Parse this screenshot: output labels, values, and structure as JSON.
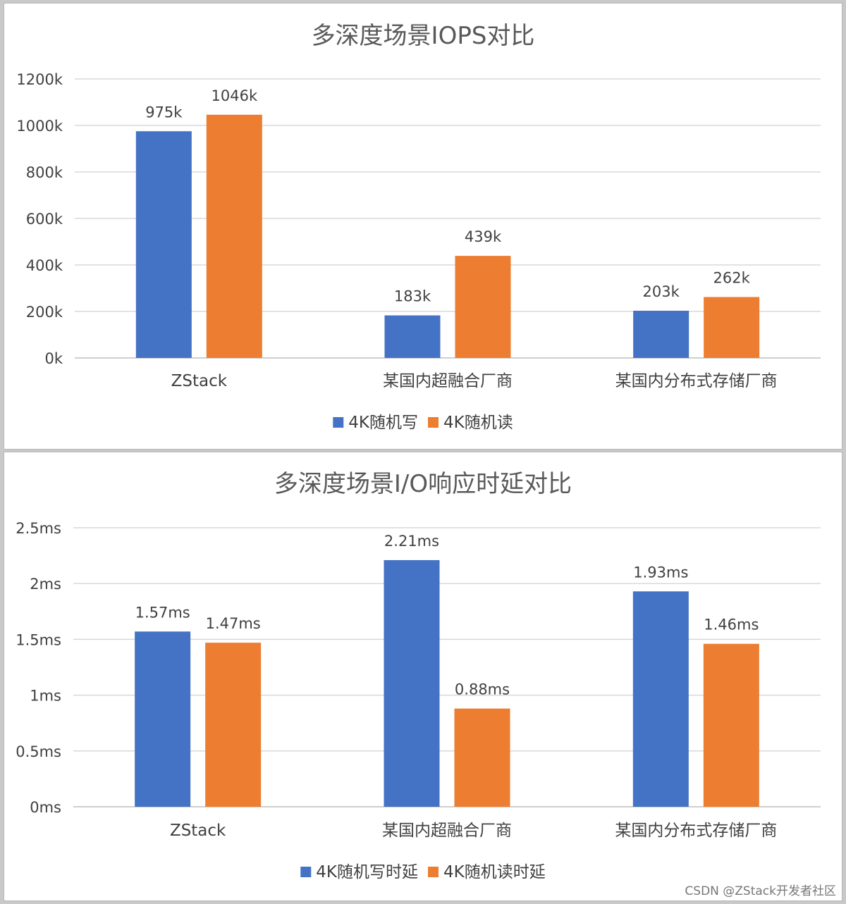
{
  "colors": {
    "series1": "#4472C4",
    "series2": "#ED7D31",
    "grid": "#D9D9D9",
    "text": "#404040",
    "title": "#595959"
  },
  "watermark": "CSDN @ZStack开发者社区",
  "chart_data": [
    {
      "type": "bar",
      "title": "多深度场景IOPS对比",
      "categories": [
        "ZStack",
        "某国内超融合厂商",
        "某国内分布式存储厂商"
      ],
      "series": [
        {
          "name": "4K随机写",
          "values": [
            975,
            183,
            203
          ],
          "labels": [
            "975k",
            "183k",
            "203k"
          ]
        },
        {
          "name": "4K随机读",
          "values": [
            1046,
            439,
            262
          ],
          "labels": [
            "1046k",
            "439k",
            "262k"
          ]
        }
      ],
      "yticks": [
        "0k",
        "200k",
        "400k",
        "600k",
        "800k",
        "1000k",
        "1200k"
      ],
      "ylim": [
        0,
        1200
      ],
      "grid": true,
      "legend": "bottom"
    },
    {
      "type": "bar",
      "title": "多深度场景I/O响应时延对比",
      "categories": [
        "ZStack",
        "某国内超融合厂商",
        "某国内分布式存储厂商"
      ],
      "series": [
        {
          "name": "4K随机写时延",
          "values": [
            1.57,
            2.21,
            1.93
          ],
          "labels": [
            "1.57ms",
            "2.21ms",
            "1.93ms"
          ]
        },
        {
          "name": "4K随机读时延",
          "values": [
            1.47,
            0.88,
            1.46
          ],
          "labels": [
            "1.47ms",
            "0.88ms",
            "1.46ms"
          ]
        }
      ],
      "yticks": [
        "0ms",
        "0.5ms",
        "1ms",
        "1.5ms",
        "2ms",
        "2.5ms"
      ],
      "ylim": [
        0,
        2.5
      ],
      "grid": true,
      "legend": "bottom"
    }
  ]
}
